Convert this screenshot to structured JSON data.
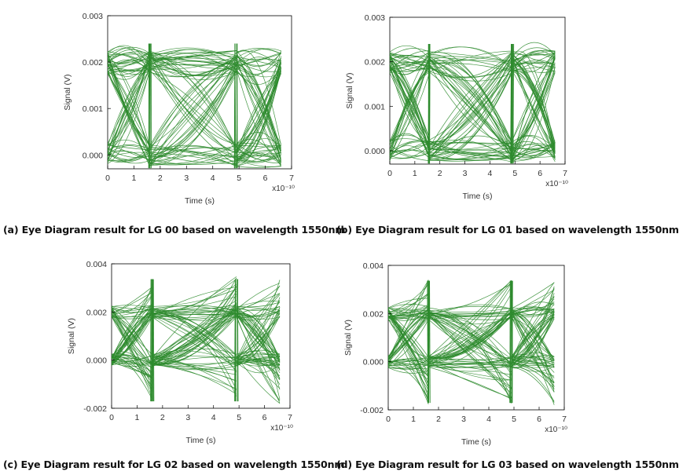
{
  "chart_data": [
    {
      "type": "line",
      "subtype": "eye-diagram",
      "xlabel": "Time (s)",
      "ylabel": "Signal (V)",
      "xlim": [
        0,
        7
      ],
      "ylim": [
        -0.0003,
        0.003
      ],
      "x_ticks": [
        "0",
        "1",
        "2",
        "3",
        "4",
        "5",
        "6",
        "7"
      ],
      "y_ticks": [
        "0.000",
        "0.001",
        "0.002",
        "0.003"
      ],
      "x_scale_label": "x10⁻¹⁰",
      "bit_transitions": [
        1.6,
        4.9
      ],
      "x_end": 6.6,
      "levels": {
        "low": 0.0,
        "high": 0.002,
        "peak_max": 0.0025,
        "min": -0.0003
      },
      "trace_color": "#2e8b2e",
      "caption": "(a) Eye Diagram result for LG 00 based on wavelength 1550nm"
    },
    {
      "type": "line",
      "subtype": "eye-diagram",
      "xlabel": "Time (s)",
      "ylabel": "Signal (V)",
      "xlim": [
        0,
        7
      ],
      "ylim": [
        -0.0003,
        0.003
      ],
      "x_ticks": [
        "0",
        "1",
        "2",
        "3",
        "4",
        "5",
        "6",
        "7"
      ],
      "y_ticks": [
        "0.000",
        "0.001",
        "0.002",
        "0.003"
      ],
      "x_scale_label": "x10⁻¹⁰",
      "bit_transitions": [
        1.6,
        4.9
      ],
      "x_end": 6.6,
      "levels": {
        "low": 0.0,
        "high": 0.002,
        "peak_max": 0.0025,
        "min": -0.0003
      },
      "trace_color": "#2e8b2e",
      "caption": "(b) Eye Diagram result for LG 01 based on wavelength 1550nm"
    },
    {
      "type": "line",
      "subtype": "eye-diagram",
      "xlabel": "Time (s)",
      "ylabel": "Signal (V)",
      "xlim": [
        0,
        7
      ],
      "ylim": [
        -0.002,
        0.004
      ],
      "x_ticks": [
        "0",
        "1",
        "2",
        "3",
        "4",
        "5",
        "6",
        "7"
      ],
      "y_ticks": [
        "-0.002",
        "0.000",
        "0.002",
        "0.004"
      ],
      "x_scale_label": "x10⁻¹⁰",
      "bit_transitions": [
        1.6,
        4.9
      ],
      "x_end": 6.6,
      "levels": {
        "low": 0.0,
        "high": 0.002,
        "peak_max": 0.0035,
        "min": -0.0018
      },
      "trace_color": "#2e8b2e",
      "caption": "(c) Eye Diagram result for LG 02 based on wavelength 1550nm"
    },
    {
      "type": "line",
      "subtype": "eye-diagram",
      "xlabel": "Time (s)",
      "ylabel": "Signal (V)",
      "xlim": [
        0,
        7
      ],
      "ylim": [
        -0.002,
        0.004
      ],
      "x_ticks": [
        "0",
        "1",
        "2",
        "3",
        "4",
        "5",
        "6",
        "7"
      ],
      "y_ticks": [
        "-0.002",
        "0.000",
        "0.002",
        "0.004"
      ],
      "x_scale_label": "x10⁻¹⁰",
      "bit_transitions": [
        1.6,
        4.9
      ],
      "x_end": 6.6,
      "levels": {
        "low": 0.0,
        "high": 0.002,
        "peak_max": 0.0035,
        "min": -0.0018
      },
      "trace_color": "#2e8b2e",
      "caption": "(d) Eye Diagram result for LG 03 based on wavelength 1550nm"
    }
  ]
}
